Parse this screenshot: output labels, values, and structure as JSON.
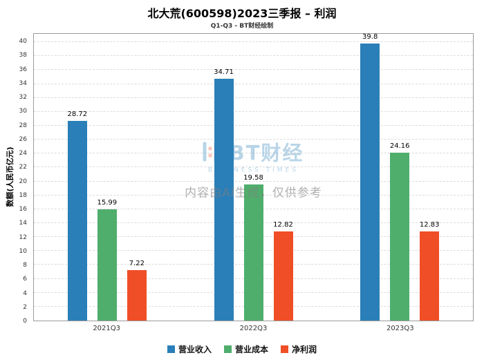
{
  "header": {
    "title": "北大荒(600598)2023三季报 – 利润",
    "subtitle": "Q1-Q3 - BT财经绘制"
  },
  "watermark": {
    "logo_text": "BT财经",
    "logo_sub": "BUSINESS TIMES",
    "disclaimer": "内容由AI生成，仅供参考"
  },
  "chart_data": {
    "type": "bar",
    "title": "北大荒(600598)2023三季报 – 利润",
    "subtitle": "Q1-Q3 - BT财经绘制",
    "categories": [
      "2021Q3",
      "2022Q3",
      "2023Q3"
    ],
    "series": [
      {
        "name": "营业收入",
        "color": "#2a7fb8",
        "values": [
          28.72,
          34.71,
          39.8
        ]
      },
      {
        "name": "营业成本",
        "color": "#4fae6c",
        "values": [
          15.99,
          19.58,
          24.16
        ]
      },
      {
        "name": "净利润",
        "color": "#f04e26",
        "values": [
          7.22,
          12.82,
          12.83
        ]
      }
    ],
    "xlabel": "",
    "ylabel": "数额(人民币亿元)",
    "ylim": [
      0,
      41.2
    ],
    "yticks": [
      0,
      2,
      4,
      6,
      8,
      10,
      12,
      14,
      16,
      18,
      20,
      22,
      24,
      26,
      28,
      30,
      32,
      34,
      36,
      38,
      40
    ],
    "grid": "horizontal-dashed",
    "legend_position": "bottom"
  }
}
